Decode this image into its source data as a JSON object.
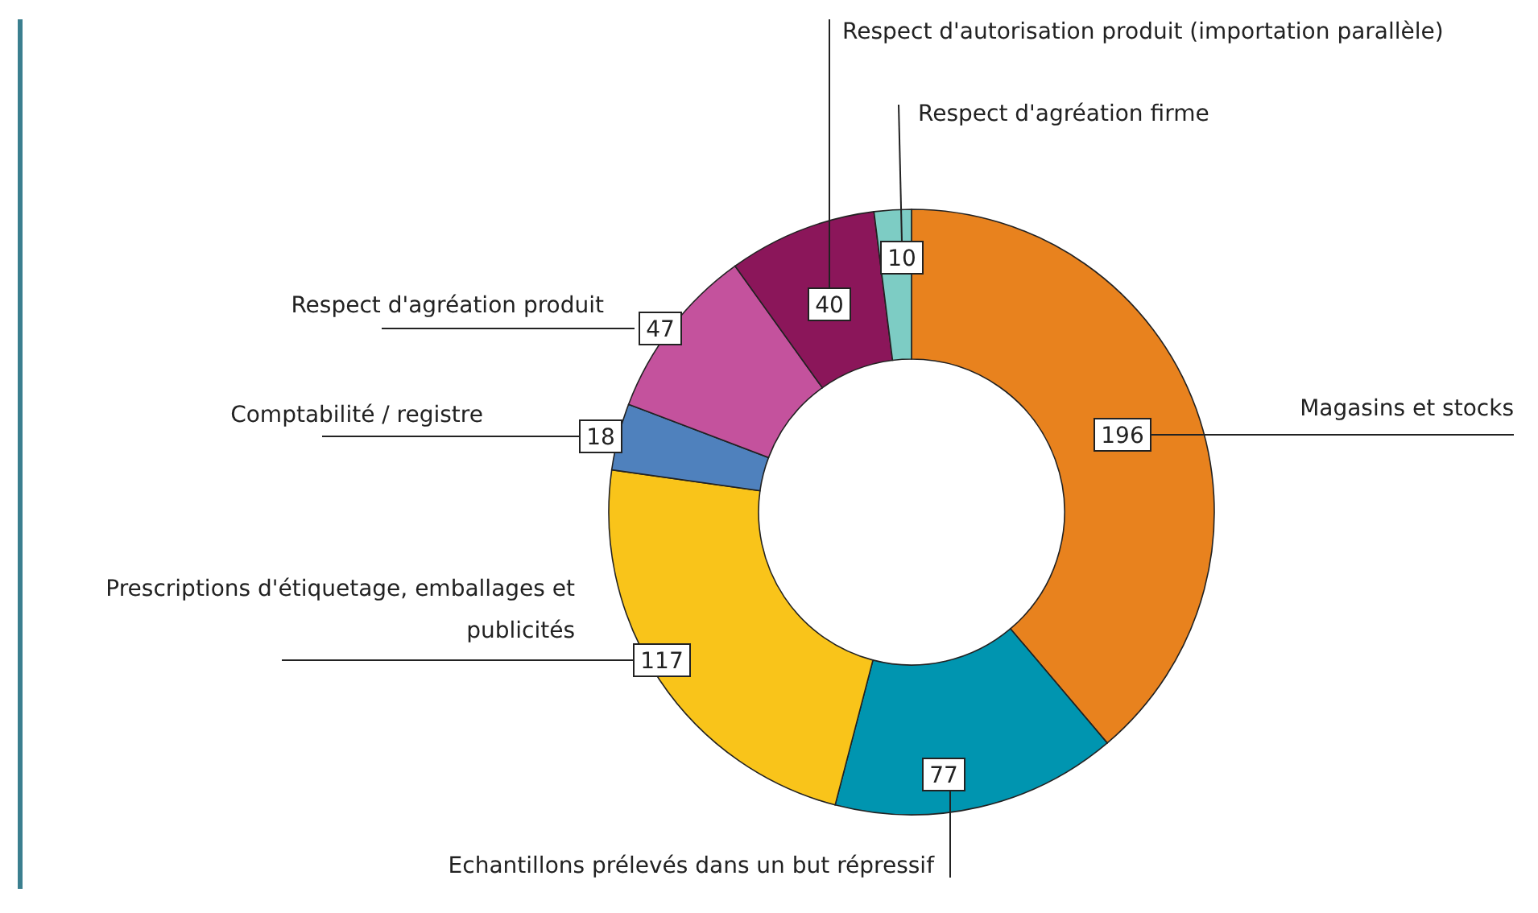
{
  "chart_data": {
    "type": "donut",
    "categories": [
      "Magasins et stocks",
      "Echantillons prélevés dans un but répressif",
      "Prescriptions d'étiquetage, emballages et publicités",
      "Comptabilité / registre",
      "Respect d'agréation produit",
      "Respect d'autorisation produit (importation parallèle)",
      "Respect d'agréation firme"
    ],
    "values": [
      196,
      77,
      117,
      18,
      47,
      40,
      10
    ],
    "colors": [
      "#e8821e",
      "#0095b0",
      "#f9c41a",
      "#4f81bd",
      "#c4529d",
      "#8b165a",
      "#7dccc4"
    ],
    "data_labels": true
  }
}
